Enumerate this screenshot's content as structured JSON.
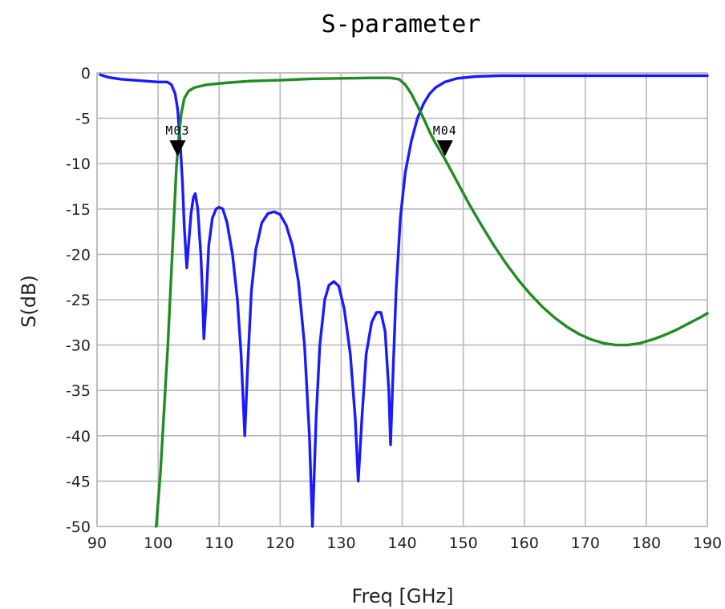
{
  "chart_data": {
    "type": "line",
    "title": "S-parameter",
    "xlabel": "Freq [GHz]",
    "ylabel": "S(dB)",
    "xlim": [
      90,
      190
    ],
    "ylim": [
      -50,
      0
    ],
    "xticks": [
      "90",
      "100",
      "110",
      "120",
      "130",
      "140",
      "150",
      "160",
      "170",
      "180",
      "190"
    ],
    "yticks": [
      "0",
      "-5",
      "-10",
      "-15",
      "-20",
      "-25",
      "-30",
      "-35",
      "-40",
      "-45",
      "-50"
    ],
    "grid": true,
    "series": [
      {
        "color": "#1a1aff",
        "points": [
          [
            90.5,
            -0.2
          ],
          [
            92,
            -0.5
          ],
          [
            94,
            -0.7
          ],
          [
            96,
            -0.8
          ],
          [
            98,
            -0.9
          ],
          [
            100,
            -1.0
          ],
          [
            101.5,
            -1.0
          ],
          [
            102.2,
            -1.3
          ],
          [
            102.8,
            -2.3
          ],
          [
            103.2,
            -4.0
          ],
          [
            103.6,
            -7.5
          ],
          [
            104.0,
            -12.0
          ],
          [
            104.3,
            -17.0
          ],
          [
            104.7,
            -21.5
          ],
          [
            105.0,
            -19.0
          ],
          [
            105.4,
            -15.5
          ],
          [
            105.8,
            -13.7
          ],
          [
            106.1,
            -13.3
          ],
          [
            106.5,
            -15.0
          ],
          [
            107.0,
            -20.0
          ],
          [
            107.3,
            -25.0
          ],
          [
            107.5,
            -29.3
          ],
          [
            107.8,
            -26.0
          ],
          [
            108.3,
            -19.0
          ],
          [
            108.9,
            -16.0
          ],
          [
            109.5,
            -15.0
          ],
          [
            110.0,
            -14.8
          ],
          [
            110.6,
            -15.0
          ],
          [
            111.3,
            -16.5
          ],
          [
            112.2,
            -20.0
          ],
          [
            113.0,
            -25.0
          ],
          [
            113.6,
            -31.0
          ],
          [
            114.2,
            -40.0
          ],
          [
            114.7,
            -32.0
          ],
          [
            115.3,
            -24.0
          ],
          [
            116.0,
            -19.5
          ],
          [
            117.0,
            -16.5
          ],
          [
            118.0,
            -15.5
          ],
          [
            119.0,
            -15.3
          ],
          [
            120.0,
            -15.6
          ],
          [
            121.0,
            -16.8
          ],
          [
            122.0,
            -19.0
          ],
          [
            123.0,
            -23.0
          ],
          [
            124.0,
            -30.0
          ],
          [
            124.8,
            -40.0
          ],
          [
            125.3,
            -50.0
          ],
          [
            125.9,
            -38.0
          ],
          [
            126.5,
            -30.0
          ],
          [
            127.3,
            -25.0
          ],
          [
            128.0,
            -23.4
          ],
          [
            128.8,
            -23.0
          ],
          [
            129.6,
            -23.5
          ],
          [
            130.5,
            -26.0
          ],
          [
            131.5,
            -31.0
          ],
          [
            132.3,
            -38.0
          ],
          [
            132.8,
            -45.0
          ],
          [
            133.4,
            -38.0
          ],
          [
            134.1,
            -31.0
          ],
          [
            135.0,
            -27.5
          ],
          [
            135.8,
            -26.4
          ],
          [
            136.5,
            -26.4
          ],
          [
            137.2,
            -28.5
          ],
          [
            137.8,
            -35.0
          ],
          [
            138.1,
            -41.0
          ],
          [
            138.5,
            -33.0
          ],
          [
            139.0,
            -24.0
          ],
          [
            139.7,
            -16.0
          ],
          [
            140.5,
            -11.0
          ],
          [
            141.5,
            -7.5
          ],
          [
            142.5,
            -5.0
          ],
          [
            143.5,
            -3.4
          ],
          [
            144.5,
            -2.3
          ],
          [
            145.5,
            -1.6
          ],
          [
            147.0,
            -1.0
          ],
          [
            149.0,
            -0.6
          ],
          [
            152.0,
            -0.4
          ],
          [
            156.0,
            -0.3
          ],
          [
            165.0,
            -0.3
          ],
          [
            175.0,
            -0.3
          ],
          [
            190.0,
            -0.3
          ]
        ]
      },
      {
        "color": "#228b22",
        "points": [
          [
            99.7,
            -50.0
          ],
          [
            100.4,
            -44.0
          ],
          [
            101.0,
            -37.0
          ],
          [
            101.6,
            -30.0
          ],
          [
            102.1,
            -23.0
          ],
          [
            102.6,
            -16.0
          ],
          [
            103.0,
            -10.5
          ],
          [
            103.4,
            -7.0
          ],
          [
            103.8,
            -4.5
          ],
          [
            104.3,
            -2.8
          ],
          [
            105.0,
            -2.0
          ],
          [
            106.0,
            -1.6
          ],
          [
            108.0,
            -1.3
          ],
          [
            111.0,
            -1.1
          ],
          [
            115.0,
            -0.9
          ],
          [
            120.0,
            -0.8
          ],
          [
            125.0,
            -0.65
          ],
          [
            130.0,
            -0.6
          ],
          [
            135.0,
            -0.55
          ],
          [
            138.0,
            -0.55
          ],
          [
            139.5,
            -0.7
          ],
          [
            140.5,
            -1.3
          ],
          [
            141.5,
            -2.3
          ],
          [
            142.5,
            -3.6
          ],
          [
            143.5,
            -5.0
          ],
          [
            144.5,
            -6.5
          ],
          [
            145.5,
            -7.8
          ],
          [
            147.0,
            -9.5
          ],
          [
            149.0,
            -12.0
          ],
          [
            151.0,
            -14.5
          ],
          [
            153.0,
            -16.8
          ],
          [
            155.0,
            -19.0
          ],
          [
            157.0,
            -21.0
          ],
          [
            159.0,
            -22.8
          ],
          [
            161.0,
            -24.4
          ],
          [
            163.0,
            -25.8
          ],
          [
            165.0,
            -27.0
          ],
          [
            167.0,
            -28.0
          ],
          [
            169.0,
            -28.8
          ],
          [
            171.0,
            -29.4
          ],
          [
            173.0,
            -29.8
          ],
          [
            175.0,
            -30.0
          ],
          [
            177.0,
            -30.0
          ],
          [
            179.0,
            -29.8
          ],
          [
            181.0,
            -29.4
          ],
          [
            183.0,
            -28.9
          ],
          [
            185.0,
            -28.3
          ],
          [
            187.0,
            -27.6
          ],
          [
            189.0,
            -26.9
          ],
          [
            190.0,
            -26.5
          ]
        ]
      }
    ],
    "markers": [
      {
        "label": "M03",
        "x": 103.2,
        "y": -9.2
      },
      {
        "label": "M04",
        "x": 147.0,
        "y": -9.2
      }
    ]
  }
}
